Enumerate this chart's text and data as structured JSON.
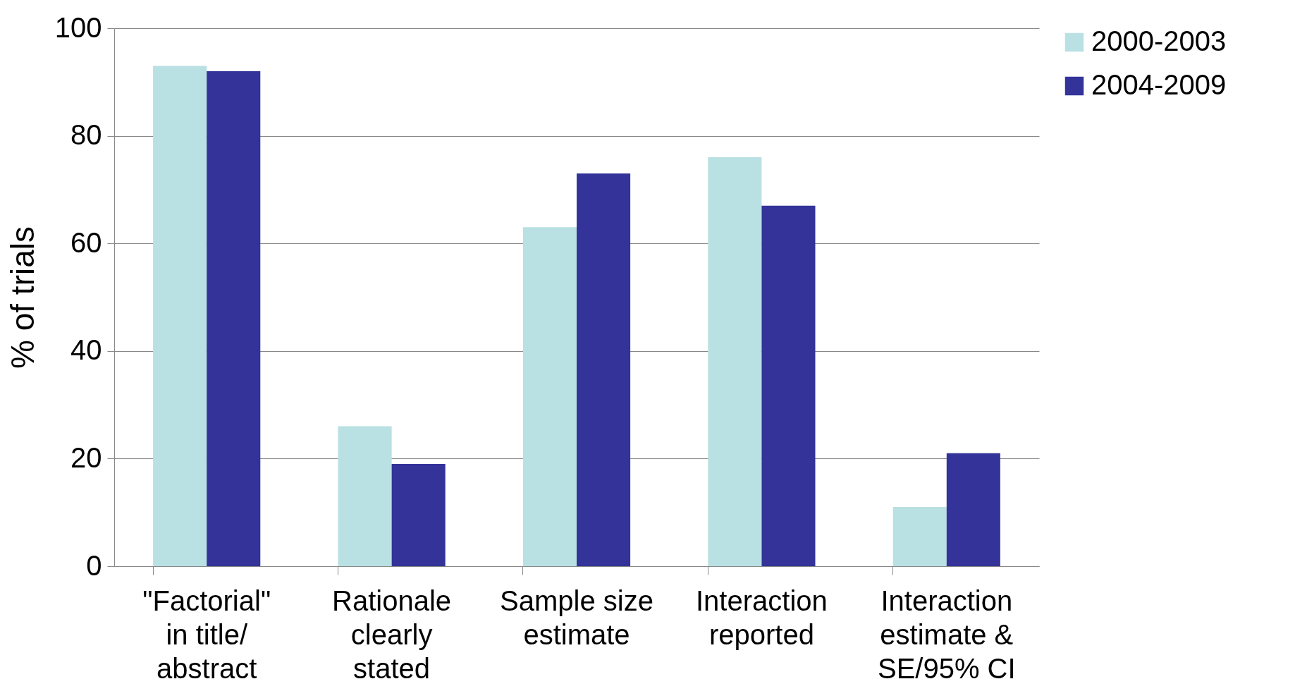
{
  "chart_data": {
    "type": "bar",
    "ylabel": "% of trials",
    "categories": [
      "\"Factorial\" in title/ abstract",
      "Rationale clearly stated",
      "Sample size estimate",
      "Interaction reported",
      "Interaction estimate & SE/95% CI"
    ],
    "series": [
      {
        "name": "2000-2003",
        "color": "#b9e0e3",
        "values": [
          93,
          26,
          63,
          76,
          11
        ]
      },
      {
        "name": "2004-2009",
        "color": "#333399",
        "values": [
          92,
          19,
          73,
          67,
          21
        ]
      }
    ],
    "ylim": [
      0,
      100
    ],
    "yticks": [
      0,
      20,
      40,
      60,
      80,
      100
    ],
    "grid": "y",
    "legend": "right"
  }
}
